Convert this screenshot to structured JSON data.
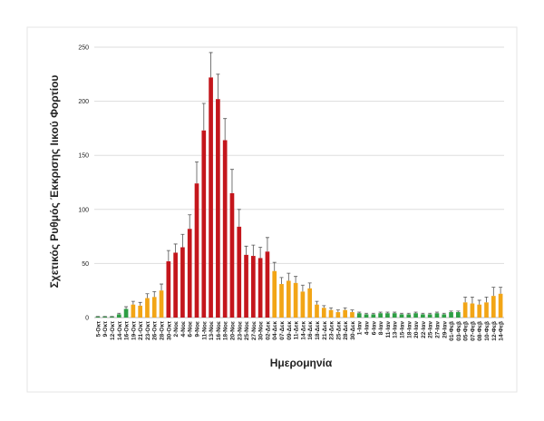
{
  "chart_data": {
    "type": "bar",
    "ylabel": "Σχετικός Ρυθμός Έκκρισης Ιικού Φορτίου",
    "xlabel": "Ημερομηνία",
    "categories": [
      "5-Οκτ",
      "9-Οκτ",
      "12-Οκτ",
      "14-Οκτ",
      "16-Οκτ",
      "19-Οκτ",
      "21-Οκτ",
      "23-Οκτ",
      "26-Οκτ",
      "28-Οκτ",
      "30-Οκτ",
      "2-Νοε",
      "4-Νοε",
      "6-Νοε",
      "9-Νοε",
      "11-Νοε",
      "13-Νοε",
      "16-Νοε",
      "18-Νοε",
      "20-Νοε",
      "23-Νοε",
      "25-Νοε",
      "27-Νοε",
      "30-Νοε",
      "02-Δεκ",
      "04-Δεκ",
      "07-Δεκ",
      "09-Δεκ",
      "11-Δεκ",
      "14-Δεκ",
      "16-Δεκ",
      "18-Δεκ",
      "21-Δεκ",
      "23-Δεκ",
      "25-Δεκ",
      "28-Δεκ",
      "30-Δεκ",
      "1-Ιαν",
      "4-Ιαν",
      "6-Ιαν",
      "8-Ιαν",
      "11-Ιαν",
      "13-Ιαν",
      "15-Ιαν",
      "18-Ιαν",
      "20-Ιαν",
      "22-Ιαν",
      "25-Ιαν",
      "27-Ιαν",
      "29-Ιαν",
      "01-Φεβ",
      "03-Φεβ",
      "05-Φεβ",
      "07-Φεβ",
      "08-Φεβ",
      "10-Φεβ",
      "12-Φεβ",
      "14-Φεβ"
    ],
    "values": [
      1,
      1,
      1,
      3,
      8,
      12,
      11,
      18,
      19,
      25,
      52,
      60,
      65,
      82,
      124,
      173,
      222,
      202,
      164,
      115,
      84,
      58,
      57,
      55,
      61,
      43,
      31,
      34,
      32,
      24,
      27,
      12,
      9,
      7,
      5,
      7,
      5,
      4,
      3,
      3,
      4,
      4,
      4,
      3,
      3,
      4,
      3,
      3,
      4,
      3,
      5,
      5,
      14,
      13,
      12,
      14,
      20,
      22
    ],
    "errors": [
      0,
      0,
      0,
      1,
      2,
      3,
      3,
      4,
      5,
      6,
      10,
      8,
      12,
      13,
      20,
      25,
      23,
      23,
      20,
      22,
      16,
      8,
      10,
      10,
      13,
      8,
      6,
      7,
      6,
      6,
      5,
      3,
      2,
      2,
      2,
      2,
      2,
      1,
      1,
      1,
      1,
      1,
      1,
      1,
      1,
      1,
      1,
      1,
      1,
      1,
      1,
      1,
      5,
      6,
      4,
      5,
      8,
      6
    ],
    "colors": [
      "#2e9e44",
      "#2e9e44",
      "#2e9e44",
      "#2e9e44",
      "#2e9e44",
      "#f2a516",
      "#f2a516",
      "#f2a516",
      "#f2a516",
      "#f2a516",
      "#c4161c",
      "#c4161c",
      "#c4161c",
      "#c4161c",
      "#c4161c",
      "#c4161c",
      "#c4161c",
      "#c4161c",
      "#c4161c",
      "#c4161c",
      "#c4161c",
      "#c4161c",
      "#c4161c",
      "#c4161c",
      "#c4161c",
      "#f2a516",
      "#f2a516",
      "#f2a516",
      "#f2a516",
      "#f2a516",
      "#f2a516",
      "#f2a516",
      "#f2a516",
      "#f2a516",
      "#f2a516",
      "#f2a516",
      "#f2a516",
      "#2e9e44",
      "#2e9e44",
      "#2e9e44",
      "#2e9e44",
      "#2e9e44",
      "#2e9e44",
      "#2e9e44",
      "#2e9e44",
      "#2e9e44",
      "#2e9e44",
      "#2e9e44",
      "#2e9e44",
      "#2e9e44",
      "#2e9e44",
      "#2e9e44",
      "#f2a516",
      "#f2a516",
      "#f2a516",
      "#f2a516",
      "#f2a516",
      "#f2a516"
    ],
    "ylim": [
      0,
      250
    ],
    "yticks": [
      0,
      50,
      100,
      150,
      200,
      250
    ],
    "grid": true
  }
}
